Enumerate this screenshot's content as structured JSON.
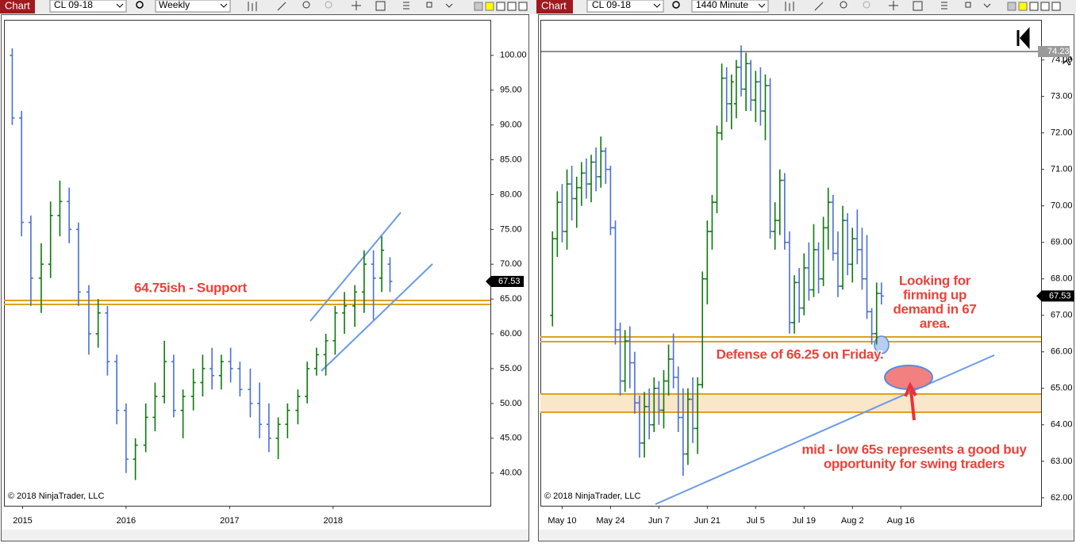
{
  "windows": [
    {
      "toolbar": {
        "tab": "Chart",
        "instrument": "CL 09-18",
        "interval": "Weekly"
      }
    },
    {
      "toolbar": {
        "tab": "Chart",
        "instrument": "CL 09-18",
        "interval": "1440 Minute"
      }
    }
  ],
  "chart_data": [
    {
      "type": "ohlc",
      "up_color": "#0b7a0b",
      "down_color": "#4a6fd8",
      "x": [
        2014.9,
        2014.99,
        2015.08,
        2015.18,
        2015.27,
        2015.36,
        2015.45,
        2015.54,
        2015.64,
        2015.73,
        2015.82,
        2015.91,
        2016.0,
        2016.09,
        2016.19,
        2016.28,
        2016.37,
        2016.46,
        2016.55,
        2016.65,
        2016.74,
        2016.83,
        2016.92,
        2017.01,
        2017.1,
        2017.2,
        2017.29,
        2017.38,
        2017.47,
        2017.56,
        2017.66,
        2017.75,
        2017.84,
        2017.93,
        2018.02,
        2018.11,
        2018.21,
        2018.3,
        2018.39,
        2018.47,
        2018.55
      ],
      "open": [
        100,
        91,
        76,
        68,
        70,
        77,
        79,
        75,
        66,
        60,
        63,
        56,
        49,
        42,
        44,
        48,
        51,
        56,
        49,
        51,
        53,
        55,
        54,
        56,
        55,
        52,
        50,
        47,
        45,
        47,
        49,
        51,
        55,
        57,
        59,
        63,
        64,
        66,
        70,
        68,
        70
      ],
      "high": [
        101,
        92,
        77,
        73,
        79,
        82,
        81,
        76,
        67,
        65,
        64,
        57,
        50,
        45,
        50,
        53,
        59,
        57,
        52,
        55,
        57,
        58,
        57,
        58,
        56,
        55,
        53,
        50,
        48,
        50,
        52,
        56,
        58,
        60,
        64,
        66,
        67,
        72,
        72,
        74,
        71
      ],
      "low": [
        90,
        74,
        64,
        63,
        68,
        74,
        73,
        64,
        57,
        58,
        54,
        47,
        40,
        39,
        43,
        46,
        50,
        48,
        45,
        49,
        51,
        52,
        52,
        53,
        51,
        48,
        45,
        43,
        42,
        45,
        47,
        50,
        54,
        54,
        57,
        60,
        61,
        63,
        62,
        66,
        66
      ],
      "close": [
        91,
        76,
        68,
        70,
        77,
        79,
        75,
        66,
        60,
        63,
        56,
        49,
        42,
        44,
        48,
        51,
        56,
        49,
        51,
        53,
        55,
        54,
        56,
        55,
        52,
        50,
        47,
        45,
        47,
        49,
        51,
        55,
        57,
        59,
        63,
        64,
        66,
        70,
        68,
        72,
        67.53
      ],
      "xlim": [
        2014.82,
        2019.52
      ],
      "xticks": [
        2015,
        2016,
        2017,
        2018
      ],
      "ylim": [
        35.3,
        105.1
      ],
      "yticks": [
        {
          "value": 40,
          "label": "40.00"
        },
        {
          "value": 45,
          "label": "45.00"
        },
        {
          "value": 50,
          "label": "50.00"
        },
        {
          "value": 55,
          "label": "55.00"
        },
        {
          "value": 60,
          "label": "60.00"
        },
        {
          "value": 65,
          "label": "65.00"
        },
        {
          "value": 70,
          "label": "70.00"
        },
        {
          "value": 75,
          "label": "75.00"
        },
        {
          "value": 80,
          "label": "80.00"
        },
        {
          "value": 85,
          "label": "85.00"
        },
        {
          "value": 90,
          "label": "90.00"
        },
        {
          "value": 95,
          "label": "95.00"
        },
        {
          "value": 100,
          "label": "100.00"
        }
      ],
      "last_price": 67.53,
      "annotations": [
        {
          "lines": [
            "64.75ish - Support"
          ]
        }
      ],
      "copyright": "© 2018 NinjaTrader, LLC"
    },
    {
      "type": "ohlc",
      "up_color": "#0b7a0b",
      "down_color": "#4a6fd8",
      "open": [
        67.0,
        69.1,
        70.1,
        69.3,
        70.6,
        70.2,
        70.5,
        70.9,
        70.6,
        71.2,
        70.8,
        71.5,
        71.0,
        69.4,
        66.6,
        65.2,
        66.3,
        65.7,
        64.6,
        63.5,
        64.5,
        64.0,
        65.0,
        64.4,
        65.2,
        65.8,
        65.3,
        64.2,
        63.2,
        64.7,
        63.9,
        65.1,
        68.0,
        69.3,
        70.1,
        72.0,
        73.5,
        72.8,
        72.8,
        73.8,
        73.2,
        73.9,
        72.9,
        73.4,
        72.6,
        73.3,
        69.3,
        69.6,
        70.7,
        69.0,
        66.8,
        67.9,
        67.2,
        68.3,
        67.7,
        68.8,
        68.0,
        69.4,
        70.1,
        68.7,
        67.8,
        69.6,
        68.4,
        69.1,
        68.8,
        68.0,
        67.1,
        66.5,
        67.6
      ],
      "high": [
        69.3,
        70.4,
        70.6,
        71.0,
        71.1,
        70.8,
        71.2,
        71.3,
        71.4,
        71.6,
        71.9,
        71.6,
        71.1,
        69.6,
        66.8,
        66.6,
        66.7,
        66.0,
        64.8,
        64.9,
        65.0,
        65.3,
        65.2,
        65.5,
        66.2,
        66.5,
        65.6,
        65.0,
        65.0,
        65.3,
        65.3,
        68.2,
        69.6,
        70.3,
        72.2,
        73.9,
        73.8,
        73.6,
        74.0,
        74.4,
        74.2,
        74.0,
        73.7,
        73.8,
        73.6,
        73.5,
        70.1,
        71.0,
        70.9,
        69.3,
        68.1,
        68.3,
        68.7,
        69.0,
        69.5,
        69.0,
        69.7,
        70.5,
        70.3,
        69.3,
        70.0,
        69.8,
        69.4,
        69.9,
        69.4,
        69.2,
        67.2,
        67.9,
        67.9
      ],
      "low": [
        66.7,
        68.6,
        69.0,
        68.8,
        69.6,
        69.4,
        70.0,
        70.2,
        70.1,
        70.4,
        70.5,
        70.6,
        69.2,
        66.2,
        64.8,
        64.9,
        65.0,
        64.3,
        63.1,
        63.1,
        63.6,
        63.8,
        64.0,
        63.9,
        64.8,
        65.0,
        63.8,
        62.6,
        62.9,
        63.5,
        63.2,
        65.0,
        67.3,
        68.8,
        69.8,
        71.8,
        72.3,
        72.1,
        72.4,
        73.0,
        72.6,
        72.6,
        72.3,
        72.2,
        71.8,
        69.1,
        68.8,
        69.2,
        68.8,
        66.5,
        66.5,
        66.8,
        67.0,
        67.4,
        67.5,
        67.6,
        67.8,
        68.8,
        68.5,
        67.5,
        67.7,
        68.1,
        67.9,
        68.4,
        67.7,
        66.9,
        66.2,
        66.2,
        67.3
      ],
      "close": [
        69.1,
        70.1,
        69.3,
        70.6,
        70.2,
        70.5,
        70.9,
        70.6,
        71.2,
        70.8,
        71.5,
        71.0,
        69.4,
        66.6,
        65.2,
        66.3,
        65.7,
        64.6,
        63.5,
        64.5,
        64.0,
        65.0,
        64.4,
        65.2,
        65.8,
        65.3,
        64.2,
        63.2,
        64.7,
        63.9,
        65.1,
        68.0,
        69.3,
        70.1,
        72.0,
        73.5,
        72.8,
        73.4,
        73.8,
        73.2,
        73.9,
        72.9,
        73.4,
        72.6,
        73.3,
        69.3,
        69.6,
        70.7,
        69.0,
        66.8,
        67.9,
        67.2,
        68.3,
        67.7,
        68.8,
        68.0,
        69.4,
        70.1,
        68.7,
        67.8,
        69.6,
        68.4,
        69.1,
        68.8,
        68.0,
        67.1,
        66.5,
        67.6,
        67.53
      ],
      "xlim": [
        -2.5,
        101
      ],
      "xticks": [
        {
          "value": 2,
          "label": "May 10"
        },
        {
          "value": 12,
          "label": "May 24"
        },
        {
          "value": 22,
          "label": "Jun 7"
        },
        {
          "value": 32,
          "label": "Jun 21"
        },
        {
          "value": 42,
          "label": "Jul 5"
        },
        {
          "value": 52,
          "label": "Jul 19"
        },
        {
          "value": 62,
          "label": "Aug 2"
        },
        {
          "value": 72,
          "label": "Aug 16"
        }
      ],
      "ylim": [
        61.78,
        75.1
      ],
      "yticks": [
        {
          "value": 62,
          "label": "62.00"
        },
        {
          "value": 63,
          "label": "63.00"
        },
        {
          "value": 64,
          "label": "64.00"
        },
        {
          "value": 65,
          "label": "65.00"
        },
        {
          "value": 66,
          "label": "66.00"
        },
        {
          "value": 67,
          "label": "67.00"
        },
        {
          "value": 68,
          "label": "68.00"
        },
        {
          "value": 69,
          "label": "69.00"
        },
        {
          "value": 70,
          "label": "70.00"
        },
        {
          "value": 71,
          "label": "71.00"
        },
        {
          "value": 72,
          "label": "72.00"
        },
        {
          "value": 73,
          "label": "73.00"
        },
        {
          "value": 74,
          "label": "74.00"
        }
      ],
      "last_price": 67.53,
      "cursor_price": 74.23,
      "annotations": [
        {
          "lines": [
            "Looking for",
            "firming up",
            "demand in 67",
            "area."
          ]
        },
        {
          "lines": [
            "Defense of 66.25 on Friday."
          ]
        },
        {
          "lines": [
            "mid - low 65s represents a good buy",
            "opportunity for swing traders"
          ]
        }
      ],
      "copyright": "© 2018 NinjaTrader, LLC"
    }
  ]
}
